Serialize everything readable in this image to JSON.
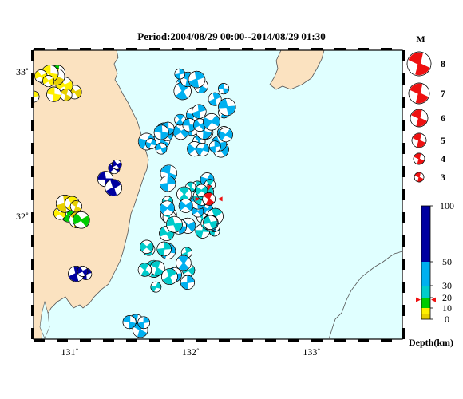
{
  "title": "Period:2004/08/29 00:00--2014/08/29 01:30",
  "map": {
    "lat_ticks": [
      {
        "value": 33,
        "label": "33˚"
      },
      {
        "value": 32,
        "label": "32˚"
      }
    ],
    "lon_ticks": [
      {
        "value": 131,
        "label": "131˚"
      },
      {
        "value": 132,
        "label": "132˚"
      },
      {
        "value": 133,
        "label": "133˚"
      }
    ],
    "extent": {
      "lon_min": 130.7,
      "lon_max": 133.75,
      "lat_min": 31.15,
      "lat_max": 33.15
    },
    "colors": {
      "sea": "#e0ffff",
      "land": "#fbe2c0",
      "coast": "#555555",
      "highlight": "#ee1111"
    }
  },
  "magnitude_legend": {
    "title": "M",
    "items": [
      {
        "label": "8"
      },
      {
        "label": "7"
      },
      {
        "label": "6"
      },
      {
        "label": "5"
      },
      {
        "label": "4"
      },
      {
        "label": "3"
      }
    ]
  },
  "depth_scale": {
    "title": "Depth(km)",
    "ticks": [
      {
        "value": 100,
        "label": "100"
      },
      {
        "value": 50,
        "label": "50"
      },
      {
        "value": 30,
        "label": "30"
      },
      {
        "value": 20,
        "label": "20"
      },
      {
        "value": 10,
        "label": "10"
      },
      {
        "value": 0,
        "label": "0"
      }
    ],
    "bands": [
      {
        "from": 0,
        "to": 5,
        "color": "#e8d000"
      },
      {
        "from": 5,
        "to": 10,
        "color": "#fff000"
      },
      {
        "from": 10,
        "to": 20,
        "color": "#00cc00"
      },
      {
        "from": 20,
        "to": 30,
        "color": "#00cccc"
      },
      {
        "from": 30,
        "to": 50,
        "color": "#00b0f0"
      },
      {
        "from": 50,
        "to": 100,
        "color": "#0000a0"
      }
    ],
    "marker_depth": 18
  },
  "highlight_event": {
    "lon": 132.15,
    "lat": 32.12,
    "magnitude": 5.2,
    "depth": 18
  }
}
